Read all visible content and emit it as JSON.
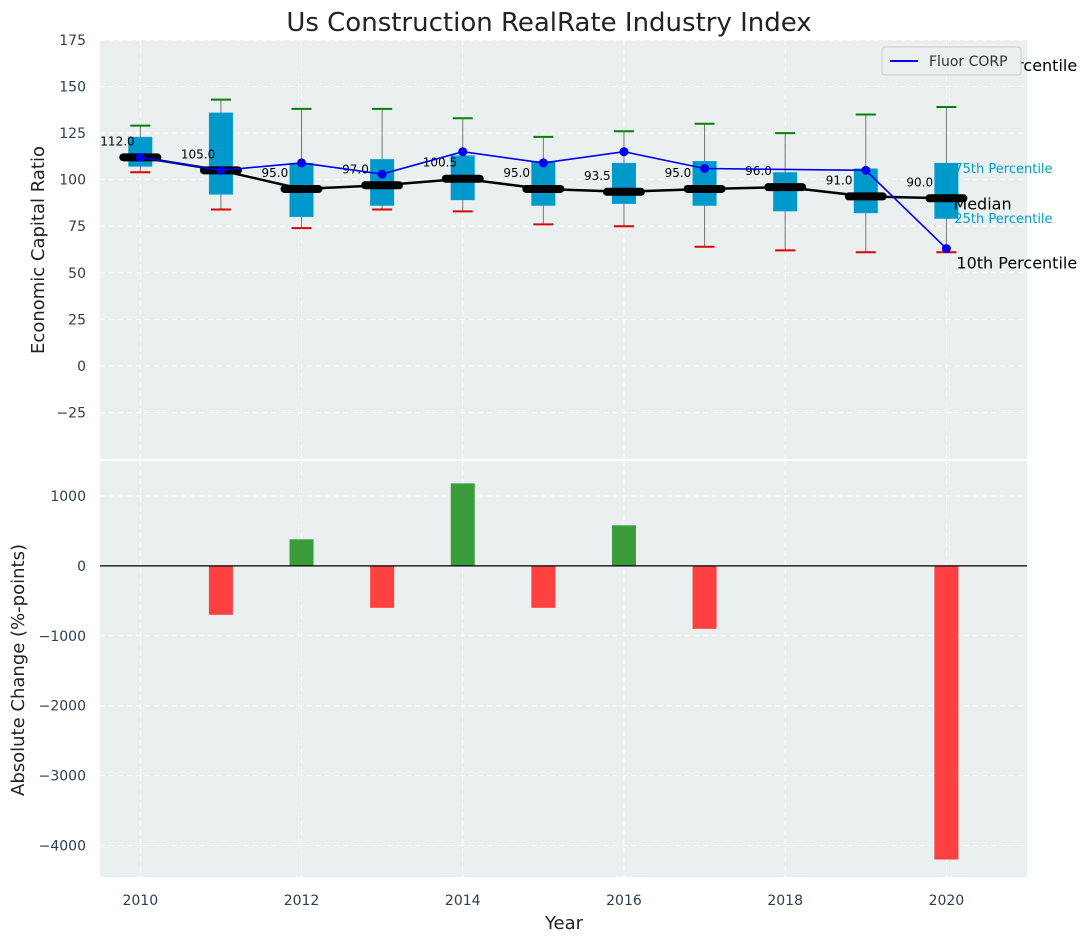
{
  "chart_data": {
    "title": "Us Construction RealRate Industry Index",
    "xlabel": "Year",
    "colors": {
      "panel_bg": "#eaeff0",
      "box": "#0099cc",
      "median_line": "#000000",
      "company_line": "#0000ee",
      "whisker_high": "#008000",
      "whisker_low": "#dd0000",
      "positive_bar": "#3a9c3a",
      "negative_bar": "#ff4040"
    },
    "top": {
      "type": "box",
      "ylabel": "Economic Capital Ratio",
      "ylim": [
        -50,
        175
      ],
      "yticks": [
        -25,
        0,
        25,
        50,
        75,
        100,
        125,
        150,
        175
      ],
      "xlim": [
        2009.5,
        2021
      ],
      "legend": {
        "label": "Fluor CORP",
        "placement": "top-right"
      },
      "years": [
        2010,
        2011,
        2012,
        2013,
        2014,
        2015,
        2016,
        2017,
        2018,
        2019,
        2020
      ],
      "p10": [
        104,
        84,
        74,
        84,
        83,
        76,
        75,
        64,
        62,
        61,
        61
      ],
      "p25": [
        107,
        92,
        80,
        86,
        89,
        86,
        87,
        86,
        83,
        82,
        79
      ],
      "median": [
        112.0,
        105.0,
        95.0,
        97.0,
        100.5,
        95.0,
        93.5,
        95.0,
        96.0,
        91.0,
        90.0
      ],
      "median_labels": [
        "112.0",
        "105.0",
        "95.0",
        "97.0",
        "100.5",
        "95.0",
        "93.5",
        "95.0",
        "96.0",
        "91.0",
        "90.0"
      ],
      "p75": [
        123,
        136,
        109,
        111,
        113,
        110,
        109,
        110,
        104,
        106,
        109
      ],
      "p90": [
        129,
        143,
        138,
        138,
        133,
        123,
        126,
        130,
        125,
        135,
        139
      ],
      "company": [
        112,
        105,
        109,
        103,
        115,
        109,
        115,
        106,
        null,
        105,
        63
      ],
      "annotations": {
        "p90": "90th Percentile",
        "p75": "75th Percentile",
        "median": "Median",
        "p25": "25th Percentile",
        "p10": "10th Percentile"
      }
    },
    "bottom": {
      "type": "bar",
      "ylabel": "Absolute Change (%-points)",
      "ylim": [
        -4450,
        1500
      ],
      "yticks": [
        -4000,
        -3000,
        -2000,
        -1000,
        0,
        1000
      ],
      "xticks": [
        2010,
        2012,
        2014,
        2016,
        2018,
        2020
      ],
      "years": [
        2011,
        2012,
        2013,
        2014,
        2015,
        2016,
        2017,
        2020
      ],
      "values": [
        -700,
        380,
        -600,
        1180,
        -600,
        580,
        -900,
        -4200
      ]
    }
  }
}
